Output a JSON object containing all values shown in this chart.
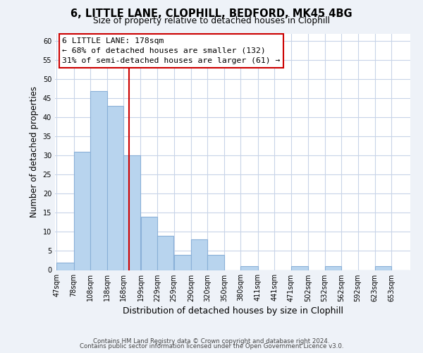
{
  "title": "6, LITTLE LANE, CLOPHILL, BEDFORD, MK45 4BG",
  "subtitle": "Size of property relative to detached houses in Clophill",
  "xlabel": "Distribution of detached houses by size in Clophill",
  "ylabel": "Number of detached properties",
  "bin_labels": [
    "47sqm",
    "78sqm",
    "108sqm",
    "138sqm",
    "168sqm",
    "199sqm",
    "229sqm",
    "259sqm",
    "290sqm",
    "320sqm",
    "350sqm",
    "380sqm",
    "411sqm",
    "441sqm",
    "471sqm",
    "502sqm",
    "532sqm",
    "562sqm",
    "592sqm",
    "623sqm",
    "653sqm"
  ],
  "bin_edges": [
    47,
    78,
    108,
    138,
    168,
    199,
    229,
    259,
    290,
    320,
    350,
    380,
    411,
    441,
    471,
    502,
    532,
    562,
    592,
    623,
    653,
    684
  ],
  "bar_heights": [
    2,
    31,
    47,
    43,
    30,
    14,
    9,
    4,
    8,
    4,
    0,
    1,
    0,
    0,
    1,
    0,
    1,
    0,
    0,
    1,
    0
  ],
  "bar_color": "#b8d4ee",
  "bar_edge_color": "#8ab0d8",
  "vline_x": 178,
  "vline_color": "#cc0000",
  "ann_line1": "6 LITTLE LANE: 178sqm",
  "ann_line2": "← 68% of detached houses are smaller (132)",
  "ann_line3": "31% of semi-detached houses are larger (61) →",
  "ylim": [
    0,
    62
  ],
  "yticks": [
    0,
    5,
    10,
    15,
    20,
    25,
    30,
    35,
    40,
    45,
    50,
    55,
    60
  ],
  "footer_line1": "Contains HM Land Registry data © Crown copyright and database right 2024.",
  "footer_line2": "Contains public sector information licensed under the Open Government Licence v3.0.",
  "bg_color": "#eef2f8",
  "plot_bg_color": "#ffffff",
  "grid_color": "#c8d4e8"
}
